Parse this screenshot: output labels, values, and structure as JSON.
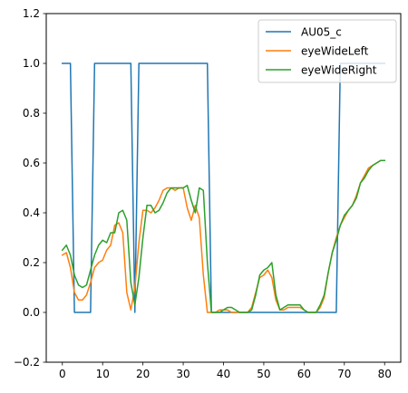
{
  "chart_data": {
    "type": "line",
    "title": "",
    "xlabel": "",
    "ylabel": "",
    "xlim": [
      -4,
      84
    ],
    "ylim": [
      -0.2,
      1.2
    ],
    "xticks": [
      0,
      10,
      20,
      30,
      40,
      50,
      60,
      70,
      80
    ],
    "yticks": [
      -0.2,
      0.0,
      0.2,
      0.4,
      0.6,
      0.8,
      1.0,
      1.2
    ],
    "xtick_labels": [
      "0",
      "10",
      "20",
      "30",
      "40",
      "50",
      "60",
      "70",
      "80"
    ],
    "ytick_labels": [
      "−0.2",
      "0.0",
      "0.2",
      "0.4",
      "0.6",
      "0.8",
      "1.0",
      "1.2"
    ],
    "grid": false,
    "legend_position": "top-right",
    "x": [
      0,
      1,
      2,
      3,
      4,
      5,
      6,
      7,
      8,
      9,
      10,
      11,
      12,
      13,
      14,
      15,
      16,
      17,
      18,
      19,
      20,
      21,
      22,
      23,
      24,
      25,
      26,
      27,
      28,
      29,
      30,
      31,
      32,
      33,
      34,
      35,
      36,
      37,
      38,
      39,
      40,
      41,
      42,
      43,
      44,
      45,
      46,
      47,
      48,
      49,
      50,
      51,
      52,
      53,
      54,
      55,
      56,
      57,
      58,
      59,
      60,
      61,
      62,
      63,
      64,
      65,
      66,
      67,
      68,
      69,
      70,
      71,
      72,
      73,
      74,
      75,
      76,
      77,
      78,
      79,
      80
    ],
    "series": [
      {
        "name": "AU05_c",
        "color": "#1f77b4",
        "values": [
          1,
          1,
          1,
          0,
          0,
          0,
          0,
          0,
          1,
          1,
          1,
          1,
          1,
          1,
          1,
          1,
          1,
          1,
          0,
          1,
          1,
          1,
          1,
          1,
          1,
          1,
          1,
          1,
          1,
          1,
          1,
          1,
          1,
          1,
          1,
          1,
          1,
          0,
          0,
          0,
          0,
          0,
          0,
          0,
          0,
          0,
          0,
          0,
          0,
          0,
          0,
          0,
          0,
          0,
          0,
          0,
          0,
          0,
          0,
          0,
          0,
          0,
          0,
          0,
          0,
          0,
          0,
          0,
          0,
          1,
          1,
          1,
          1,
          1,
          1,
          1,
          1,
          1,
          1,
          1,
          1
        ]
      },
      {
        "name": "eyeWideLeft",
        "color": "#ff7f0e",
        "values": [
          0.23,
          0.24,
          0.18,
          0.08,
          0.05,
          0.05,
          0.07,
          0.12,
          0.18,
          0.2,
          0.21,
          0.25,
          0.27,
          0.35,
          0.36,
          0.32,
          0.08,
          0.01,
          0.1,
          0.28,
          0.41,
          0.41,
          0.4,
          0.42,
          0.45,
          0.49,
          0.5,
          0.5,
          0.49,
          0.5,
          0.5,
          0.42,
          0.37,
          0.43,
          0.38,
          0.15,
          0.0,
          0.0,
          0.0,
          0.01,
          0.01,
          0.01,
          0.0,
          0.0,
          0.0,
          0.0,
          0.0,
          0.02,
          0.08,
          0.14,
          0.15,
          0.17,
          0.14,
          0.05,
          0.01,
          0.01,
          0.02,
          0.02,
          0.02,
          0.02,
          0.01,
          0.0,
          0.0,
          0.0,
          0.02,
          0.06,
          0.16,
          0.24,
          0.3,
          0.35,
          0.38,
          0.41,
          0.43,
          0.47,
          0.52,
          0.55,
          0.58,
          0.59,
          0.6,
          0.61,
          0.61
        ]
      },
      {
        "name": "eyeWideRight",
        "color": "#2ca02c",
        "values": [
          0.25,
          0.27,
          0.23,
          0.15,
          0.11,
          0.1,
          0.11,
          0.17,
          0.23,
          0.27,
          0.29,
          0.28,
          0.32,
          0.32,
          0.4,
          0.41,
          0.37,
          0.12,
          0.03,
          0.14,
          0.3,
          0.43,
          0.43,
          0.4,
          0.41,
          0.44,
          0.48,
          0.5,
          0.5,
          0.5,
          0.5,
          0.51,
          0.45,
          0.4,
          0.5,
          0.49,
          0.2,
          0.0,
          0.0,
          0.0,
          0.01,
          0.02,
          0.02,
          0.01,
          0.0,
          0.0,
          0.0,
          0.01,
          0.07,
          0.15,
          0.17,
          0.18,
          0.2,
          0.07,
          0.01,
          0.02,
          0.03,
          0.03,
          0.03,
          0.03,
          0.01,
          0.0,
          0.0,
          0.0,
          0.03,
          0.07,
          0.16,
          0.24,
          0.29,
          0.35,
          0.39,
          0.41,
          0.43,
          0.46,
          0.52,
          0.54,
          0.57,
          0.59,
          0.6,
          0.61,
          0.61
        ]
      }
    ]
  }
}
